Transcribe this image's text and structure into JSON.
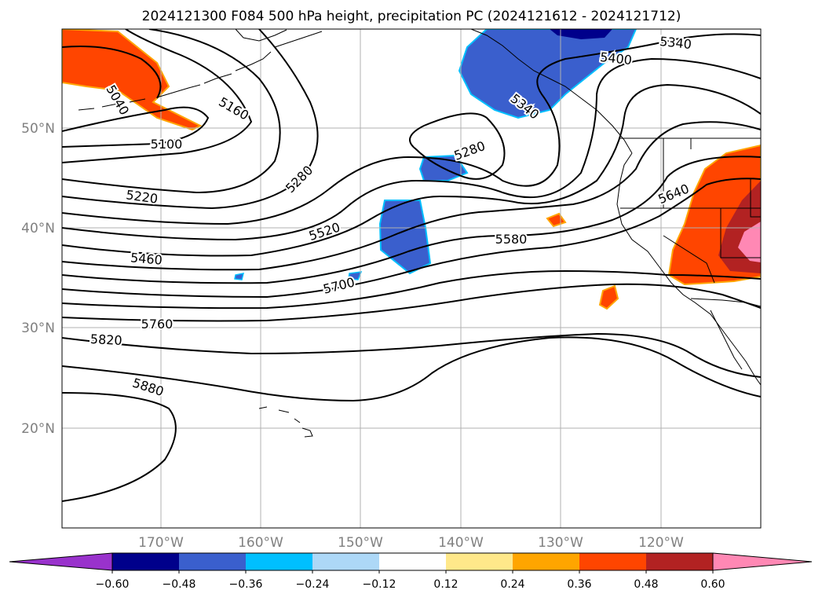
{
  "title": "2024121300 F084 500 hPa height, precipitation PC (2024121612 - 2024121712)",
  "lat_labels": [
    "50°N",
    "40°N",
    "30°N",
    "20°N"
  ],
  "lon_labels": [
    "170°W",
    "160°W",
    "150°W",
    "140°W",
    "130°W",
    "120°W"
  ],
  "contour_labels": [
    "5040",
    "5100",
    "5160",
    "5220",
    "5280",
    "5280",
    "5340",
    "5340",
    "5400",
    "5460",
    "5520",
    "5580",
    "5640",
    "5700",
    "5760",
    "5820",
    "5880"
  ],
  "colorbar": {
    "ticks": [
      "−0.60",
      "−0.48",
      "−0.36",
      "−0.24",
      "−0.12",
      "0.12",
      "0.24",
      "0.36",
      "0.48",
      "0.60"
    ],
    "colors": [
      "#9932cc",
      "#00008b",
      "#3a5fcd",
      "#00bfff",
      "#add8f7",
      "#ffffff",
      "#ffe88a",
      "#ffa500",
      "#ff4500",
      "#b22222",
      "#ff88b4"
    ]
  }
}
